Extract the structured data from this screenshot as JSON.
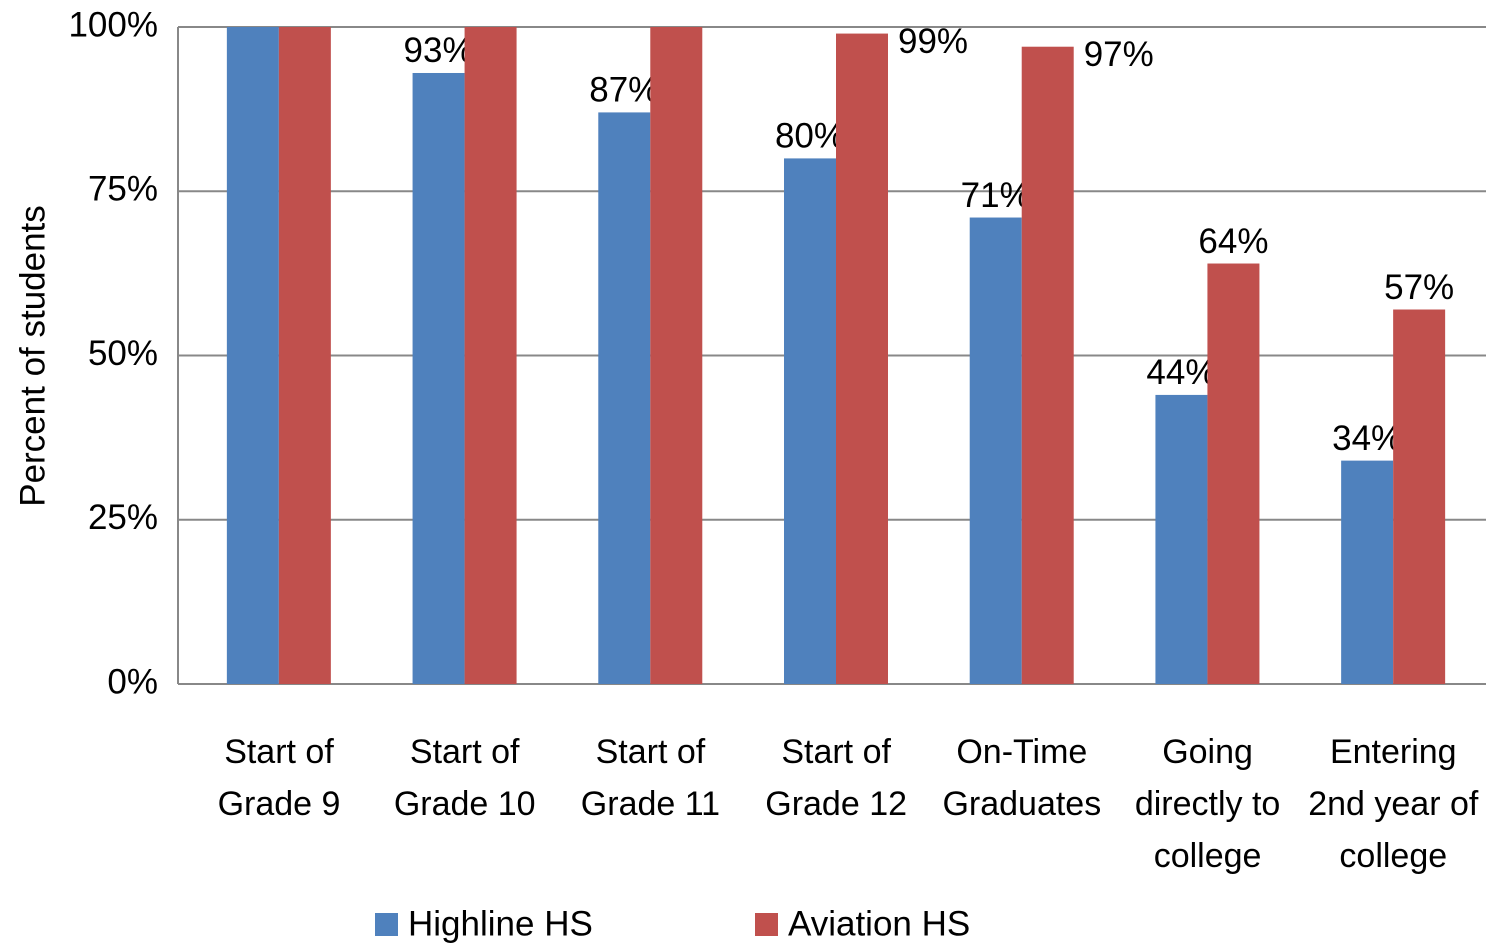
{
  "chart_data": {
    "type": "bar",
    "y_label": "Percent of students",
    "categories": [
      "Start of Grade 9",
      "Start of Grade 10",
      "Start of Grade 11",
      "Start of Grade 12",
      "On-Time Graduates",
      "Going directly to college",
      "Entering 2nd year of college"
    ],
    "series": [
      {
        "name": "Highline HS",
        "color": "#4f81bd",
        "values": [
          100,
          93,
          87,
          80,
          71,
          44,
          34
        ],
        "value_labels": [
          null,
          "93%",
          "87%",
          "80%",
          "71%",
          "44%",
          "34%"
        ]
      },
      {
        "name": "Aviation HS",
        "color": "#c0504d",
        "values": [
          100,
          100,
          100,
          99,
          97,
          64,
          57
        ],
        "value_labels": [
          null,
          null,
          null,
          "99%",
          "97%",
          "64%",
          "57%"
        ]
      }
    ],
    "ylim": [
      0,
      100
    ],
    "yticks": [
      {
        "value": 0,
        "label": "0%"
      },
      {
        "value": 25,
        "label": "25%"
      },
      {
        "value": 50,
        "label": "50%"
      },
      {
        "value": 75,
        "label": "75%"
      },
      {
        "value": 100,
        "label": "100%"
      }
    ],
    "grid": true,
    "legend": "bottom"
  }
}
